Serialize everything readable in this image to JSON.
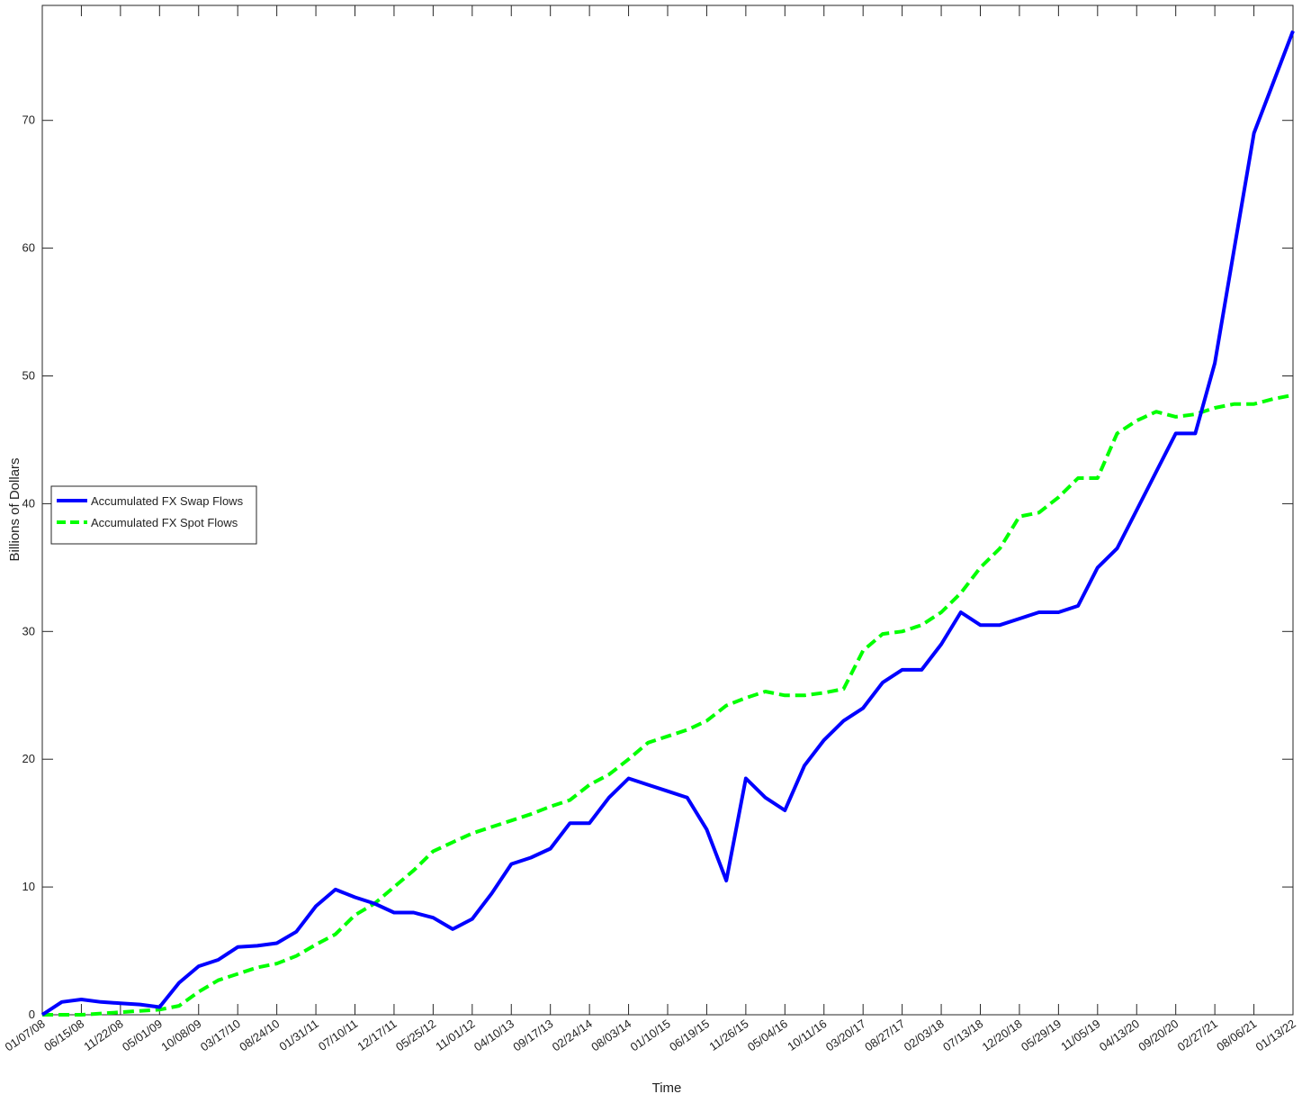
{
  "chart_data": {
    "type": "line",
    "x_label": "Time",
    "y_label": "Billions of Dollars",
    "categories": [
      "01/07/08",
      null,
      "06/15/08",
      null,
      "11/22/08",
      null,
      "05/01/09",
      null,
      "10/08/09",
      null,
      "03/17/10",
      null,
      "08/24/10",
      null,
      "01/31/11",
      null,
      "07/10/11",
      null,
      "12/17/11",
      null,
      "05/25/12",
      null,
      "11/01/12",
      null,
      "04/10/13",
      null,
      "09/17/13",
      null,
      "02/24/14",
      null,
      "08/03/14",
      null,
      "01/10/15",
      null,
      "06/19/15",
      null,
      "11/26/15",
      null,
      "05/04/16",
      null,
      "10/11/16",
      null,
      "03/20/17",
      null,
      "08/27/17",
      null,
      "02/03/18",
      null,
      "07/13/18",
      null,
      "12/20/18",
      null,
      "05/29/19",
      null,
      "11/05/19",
      null,
      "04/13/20",
      null,
      "09/20/20",
      null,
      "02/27/21",
      null,
      "08/06/21",
      null,
      "01/13/22"
    ],
    "series": [
      {
        "name": "Accumulated FX Swap Flows",
        "color": "#0000ff",
        "linestyle": "solid",
        "values": [
          0,
          1.0,
          1.2,
          1.0,
          0.9,
          0.8,
          0.6,
          2.5,
          3.8,
          4.3,
          5.3,
          5.4,
          5.6,
          6.5,
          8.5,
          9.8,
          9.2,
          8.7,
          8.0,
          8.0,
          7.6,
          6.7,
          7.5,
          9.5,
          11.8,
          12.3,
          13.0,
          15.0,
          15.0,
          17.0,
          18.5,
          18.0,
          17.5,
          17.0,
          14.5,
          10.5,
          18.5,
          17.0,
          16.0,
          19.5,
          21.5,
          23.0,
          24.0,
          26.0,
          27.0,
          27.0,
          29.0,
          31.5,
          30.5,
          30.5,
          31.0,
          31.5,
          31.5,
          32.0,
          35.0,
          36.5,
          39.5,
          42.5,
          45.5,
          45.5,
          51.0,
          60.0,
          69.0,
          73.0,
          77.0
        ]
      },
      {
        "name": "Accumulated FX Spot Flows",
        "color": "#00ff00",
        "linestyle": "dashed",
        "values": [
          0,
          0,
          0,
          0.1,
          0.2,
          0.3,
          0.4,
          0.7,
          1.8,
          2.7,
          3.2,
          3.7,
          4.0,
          4.6,
          5.5,
          6.3,
          7.8,
          8.7,
          10.0,
          11.3,
          12.8,
          13.5,
          14.2,
          14.7,
          15.2,
          15.7,
          16.3,
          16.8,
          18.0,
          18.8,
          20.0,
          21.3,
          21.8,
          22.3,
          23.0,
          24.2,
          24.8,
          25.3,
          25.0,
          25.0,
          25.2,
          25.5,
          28.5,
          29.8,
          30.0,
          30.5,
          31.5,
          33.0,
          35.0,
          36.5,
          39.0,
          39.3,
          40.5,
          42.0,
          42.0,
          45.5,
          46.5,
          47.2,
          46.8,
          47.0,
          47.5,
          47.8,
          47.8,
          48.2,
          48.5
        ]
      }
    ],
    "ylim": [
      0,
      79
    ],
    "yticks": [
      0,
      10,
      20,
      30,
      40,
      50,
      60,
      70
    ],
    "legend": "west",
    "grid": false
  }
}
